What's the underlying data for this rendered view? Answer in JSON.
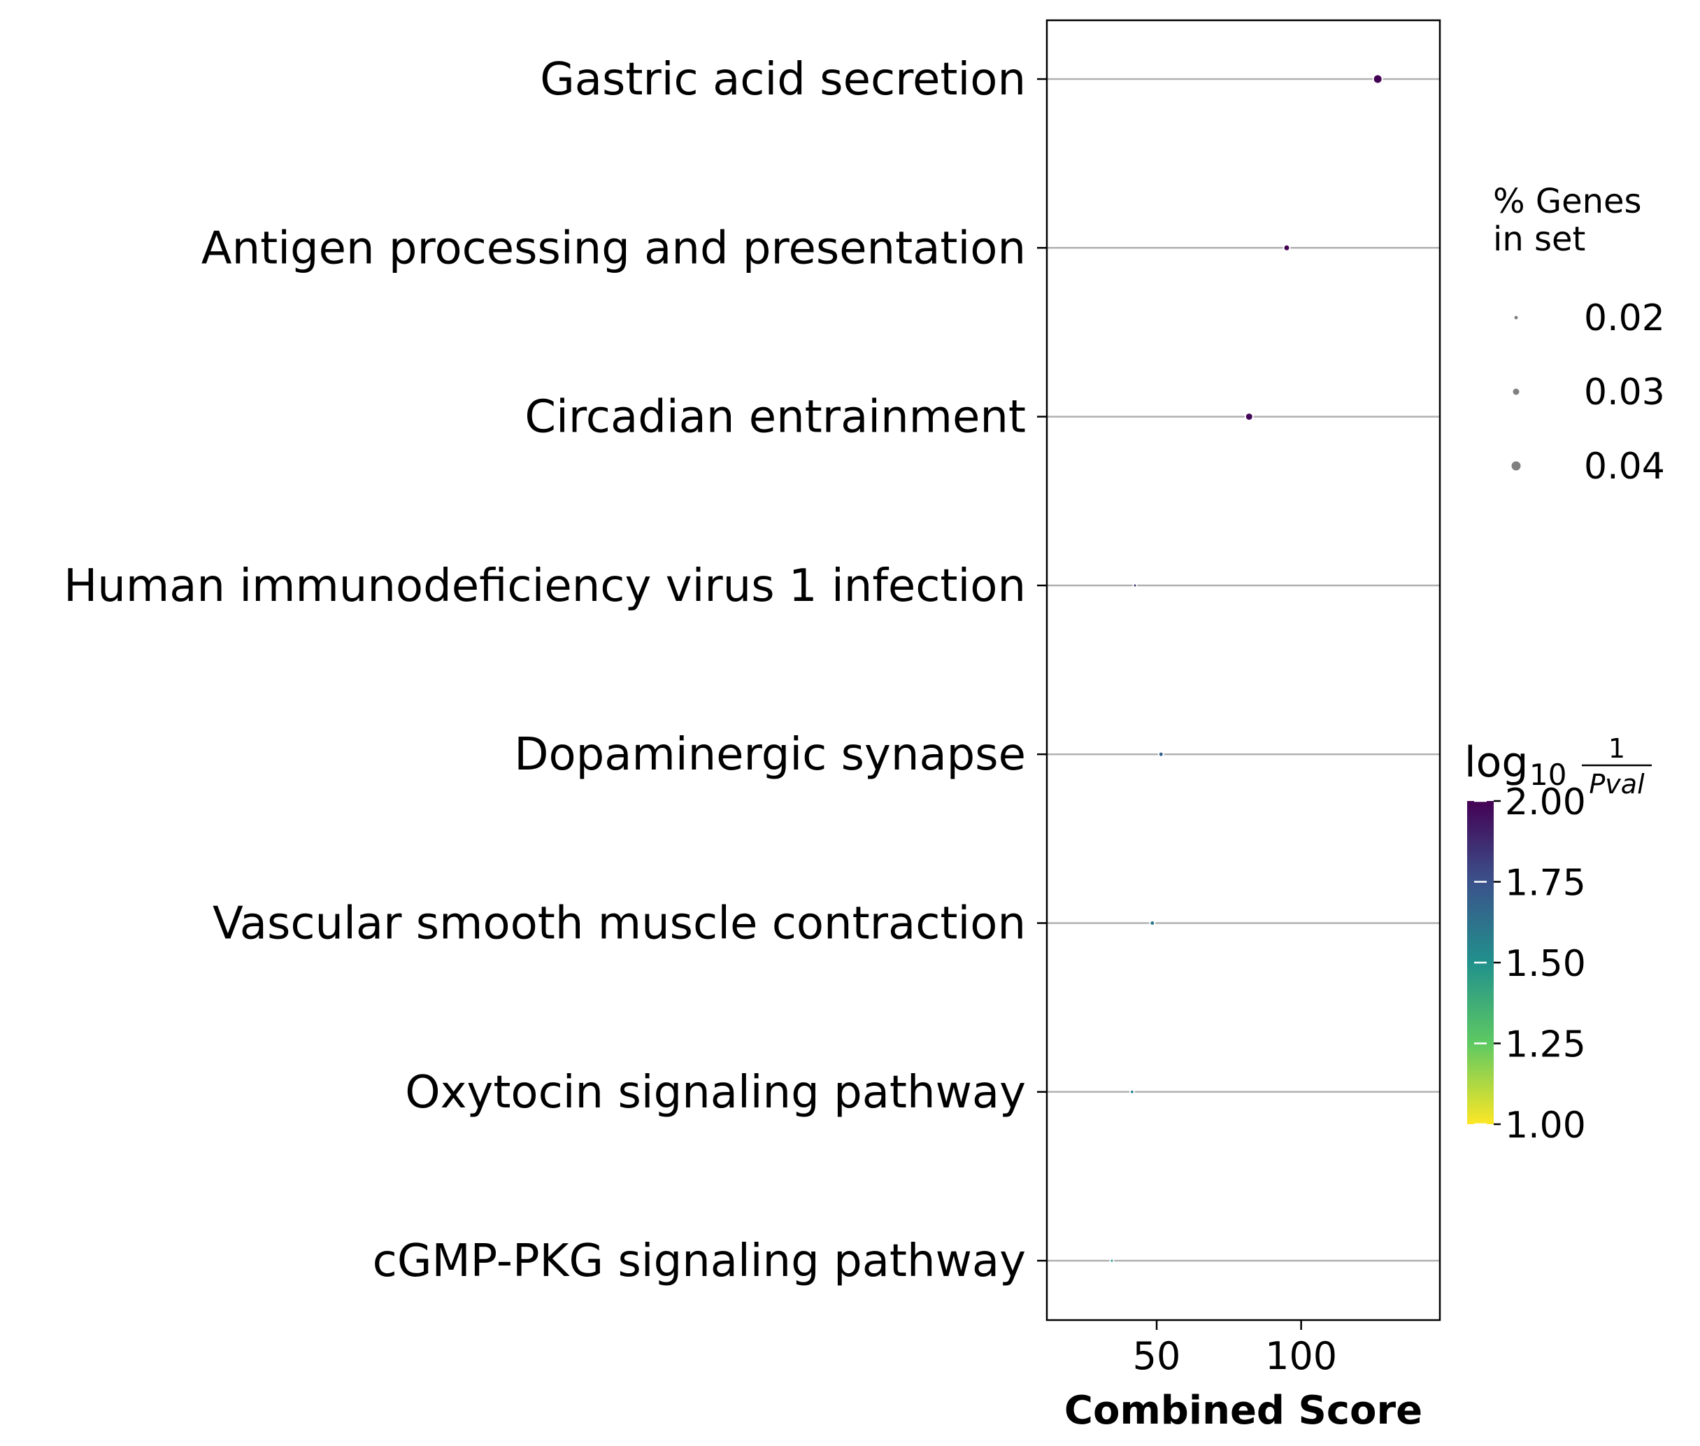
{
  "chart_data": {
    "type": "scatter",
    "xlabel": "Combined Score",
    "ylabel": "",
    "xlim": [
      12,
      148
    ],
    "x_ticks": [
      50,
      100
    ],
    "grid": "horizontal",
    "categories": [
      "Gastric acid secretion",
      "Antigen processing and presentation",
      "Circadian entrainment",
      "Human immunodeficiency virus 1 infection",
      "Dopaminergic synapse",
      "Vascular smooth muscle contraction",
      "Oxytocin signaling pathway",
      "cGMP-PKG signaling pathway"
    ],
    "points": [
      {
        "term": "Gastric acid secretion",
        "combined_score": 126.5,
        "log10_inv_pval": 2.0,
        "pct_genes": 0.04
      },
      {
        "term": "Antigen processing and presentation",
        "combined_score": 95.0,
        "log10_inv_pval": 2.0,
        "pct_genes": 0.03
      },
      {
        "term": "Circadian entrainment",
        "combined_score": 82.0,
        "log10_inv_pval": 1.98,
        "pct_genes": 0.035
      },
      {
        "term": "Human immunodeficiency virus 1 infection",
        "combined_score": 42.5,
        "log10_inv_pval": 1.85,
        "pct_genes": 0.02
      },
      {
        "term": "Dopaminergic synapse",
        "combined_score": 51.5,
        "log10_inv_pval": 1.7,
        "pct_genes": 0.025
      },
      {
        "term": "Vascular smooth muscle contraction",
        "combined_score": 48.5,
        "log10_inv_pval": 1.6,
        "pct_genes": 0.025
      },
      {
        "term": "Oxytocin signaling pathway",
        "combined_score": 41.5,
        "log10_inv_pval": 1.55,
        "pct_genes": 0.022
      },
      {
        "term": "cGMP-PKG signaling pathway",
        "combined_score": 34.5,
        "log10_inv_pval": 1.5,
        "pct_genes": 0.02
      }
    ],
    "size_legend": {
      "title": "% Genes\nin set",
      "placement": "right-top",
      "entries": [
        {
          "label": "0.02",
          "value": 0.02
        },
        {
          "label": "0.03",
          "value": 0.03
        },
        {
          "label": "0.04",
          "value": 0.04
        }
      ]
    },
    "colorbar": {
      "title_base": "log",
      "title_subscript": "10",
      "title_numerator": "1",
      "title_denominator": "Pval",
      "range": [
        1.0,
        2.0
      ],
      "ticks": [
        {
          "label": "2.00",
          "value": 2.0
        },
        {
          "label": "1.75",
          "value": 1.75
        },
        {
          "label": "1.50",
          "value": 1.5
        },
        {
          "label": "1.25",
          "value": 1.25
        },
        {
          "label": "1.00",
          "value": 1.0
        }
      ],
      "colormap": "viridis_r",
      "placement": "right-bottom"
    },
    "colors": {
      "gridline": "#b0b0b0",
      "size_legend_marker": "#808080",
      "viridis_stops": [
        "#440154",
        "#3b528b",
        "#21918c",
        "#5ec962",
        "#fde725"
      ]
    }
  }
}
